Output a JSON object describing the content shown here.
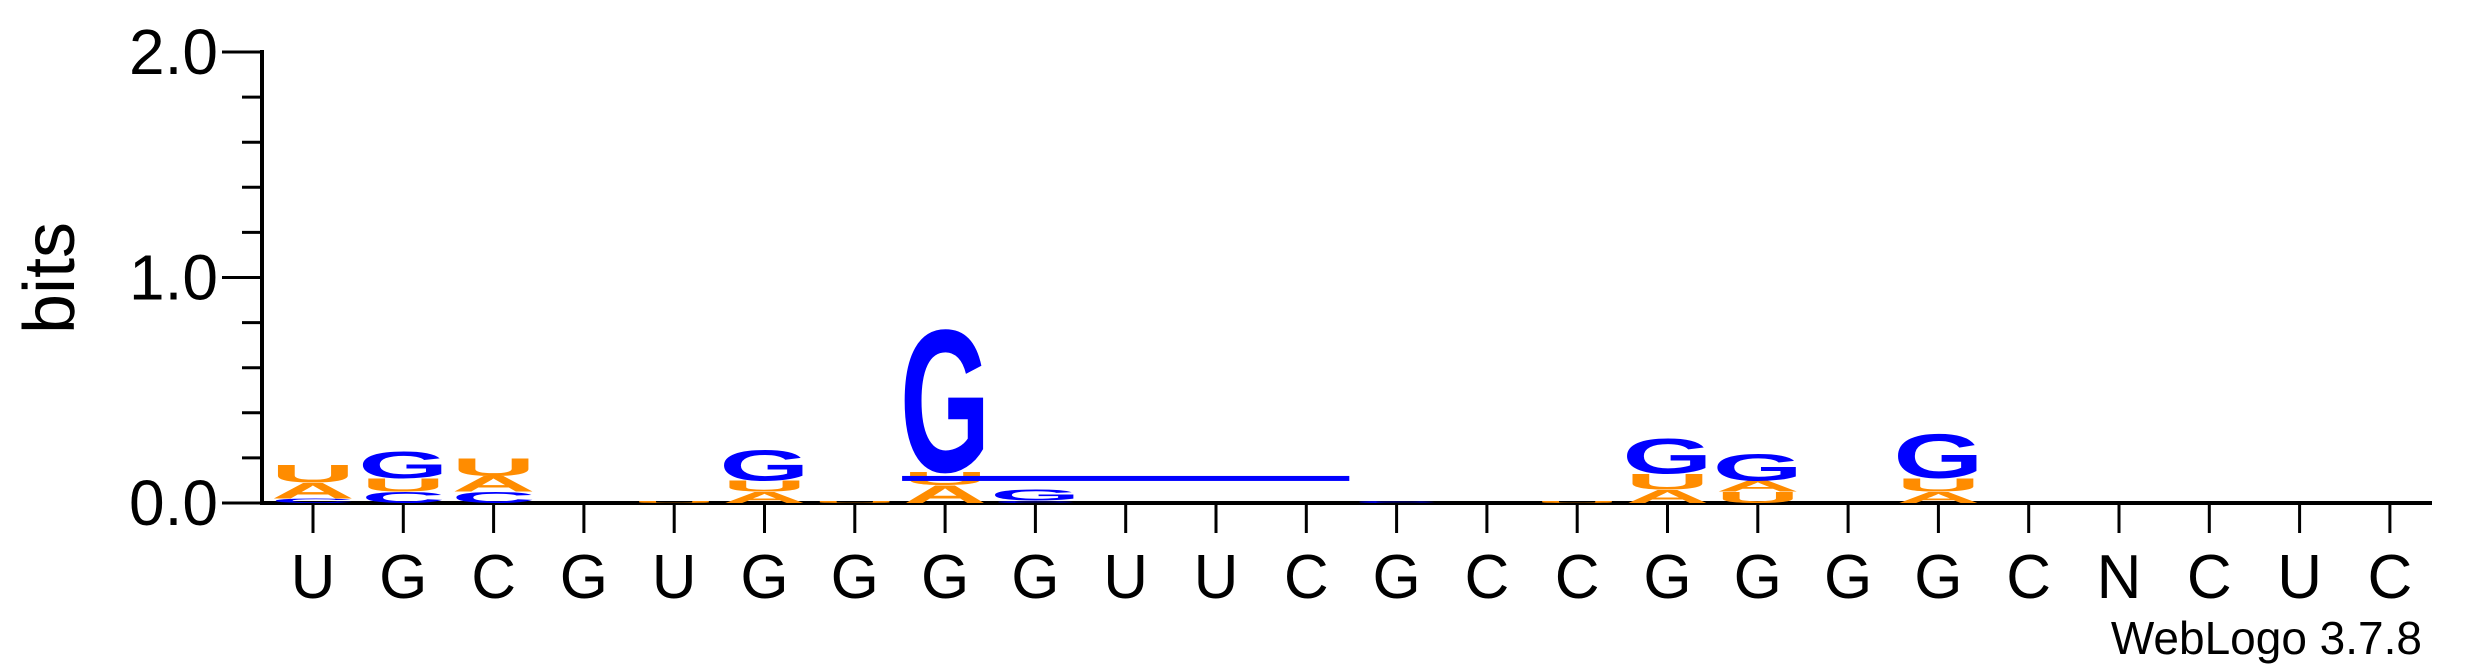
{
  "chart_data": {
    "type": "sequence_logo",
    "ylabel": "bits",
    "ylim": [
      0,
      2.0
    ],
    "yticks": [
      "0.0",
      "1.0",
      "2.0"
    ],
    "credit": "WebLogo 3.7.8",
    "letter_colors": {
      "A": "#FF8C00",
      "U": "#FF8C00",
      "G": "#0000FF",
      "C": "#0000FF"
    },
    "positions": [
      {
        "label": "U",
        "stack": [
          {
            "letter": "C",
            "bits": 0.02
          },
          {
            "letter": "A",
            "bits": 0.07
          },
          {
            "letter": "U",
            "bits": 0.08
          }
        ]
      },
      {
        "label": "G",
        "stack": [
          {
            "letter": "C",
            "bits": 0.05
          },
          {
            "letter": "U",
            "bits": 0.06
          },
          {
            "letter": "G",
            "bits": 0.12
          }
        ]
      },
      {
        "label": "C",
        "stack": [
          {
            "letter": "C",
            "bits": 0.05
          },
          {
            "letter": "A",
            "bits": 0.07
          },
          {
            "letter": "U",
            "bits": 0.08
          }
        ]
      },
      {
        "label": "G",
        "stack": []
      },
      {
        "label": "U",
        "stack": [
          {
            "letter": "U",
            "bits": 0.01
          }
        ]
      },
      {
        "label": "G",
        "stack": [
          {
            "letter": "A",
            "bits": 0.05
          },
          {
            "letter": "U",
            "bits": 0.05
          },
          {
            "letter": "G",
            "bits": 0.14
          }
        ]
      },
      {
        "label": "G",
        "stack": [
          {
            "letter": "U",
            "bits": 0.01
          }
        ]
      },
      {
        "label": "G",
        "stack": [
          {
            "letter": "A",
            "bits": 0.08
          },
          {
            "letter": "U",
            "bits": 0.06
          },
          {
            "letter": "G",
            "bits": 0.65
          }
        ]
      },
      {
        "label": "G",
        "stack": [
          {
            "letter": "C",
            "bits": 0.01
          },
          {
            "letter": "G",
            "bits": 0.05
          }
        ]
      },
      {
        "label": "U",
        "stack": []
      },
      {
        "label": "U",
        "stack": []
      },
      {
        "label": "C",
        "stack": []
      },
      {
        "label": "G",
        "stack": [
          {
            "letter": "C",
            "bits": 0.01
          }
        ]
      },
      {
        "label": "C",
        "stack": []
      },
      {
        "label": "C",
        "stack": [
          {
            "letter": "U",
            "bits": 0.01
          }
        ]
      },
      {
        "label": "G",
        "stack": [
          {
            "letter": "A",
            "bits": 0.06
          },
          {
            "letter": "U",
            "bits": 0.07
          },
          {
            "letter": "G",
            "bits": 0.16
          }
        ]
      },
      {
        "label": "G",
        "stack": [
          {
            "letter": "U",
            "bits": 0.05
          },
          {
            "letter": "A",
            "bits": 0.05
          },
          {
            "letter": "G",
            "bits": 0.12
          }
        ]
      },
      {
        "label": "G",
        "stack": []
      },
      {
        "label": "G",
        "stack": [
          {
            "letter": "A",
            "bits": 0.05
          },
          {
            "letter": "U",
            "bits": 0.06
          },
          {
            "letter": "G",
            "bits": 0.2
          }
        ]
      },
      {
        "label": "C",
        "stack": []
      },
      {
        "label": "N",
        "stack": []
      },
      {
        "label": "C",
        "stack": []
      },
      {
        "label": "U",
        "stack": []
      },
      {
        "label": "C",
        "stack": []
      }
    ],
    "bar_overlay": {
      "from_position": 7,
      "to_position": 11,
      "bits": 0.12,
      "color": "#0000FF"
    }
  }
}
